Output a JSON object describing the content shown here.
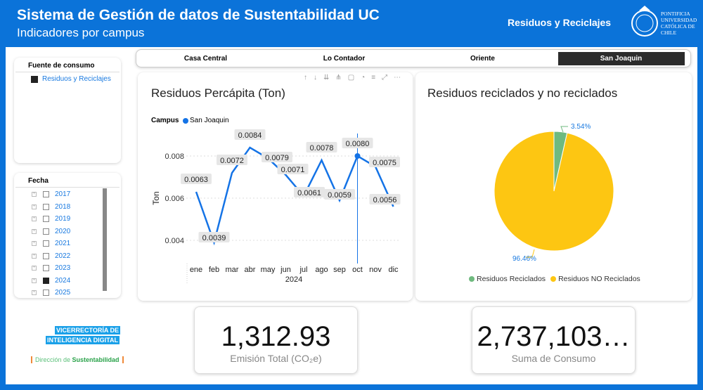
{
  "header": {
    "title": "Sistema de Gestión de datos de Sustentabilidad UC",
    "subtitle": "Indicadores por campus",
    "section": "Residuos y Reciclajes",
    "logo_text": "PONTIFICIA UNIVERSIDAD CATÓLICA DE CHILE"
  },
  "fuente": {
    "title": "Fuente de consumo",
    "item": "Residuos y Reciclajes"
  },
  "fecha": {
    "title": "Fecha",
    "years": [
      {
        "y": "2017",
        "c": false
      },
      {
        "y": "2018",
        "c": false
      },
      {
        "y": "2019",
        "c": false
      },
      {
        "y": "2020",
        "c": false
      },
      {
        "y": "2021",
        "c": false
      },
      {
        "y": "2022",
        "c": false
      },
      {
        "y": "2023",
        "c": false
      },
      {
        "y": "2024",
        "c": true
      },
      {
        "y": "2025",
        "c": false
      }
    ]
  },
  "tabs": [
    "Casa Central",
    "Lo Contador",
    "Oriente",
    "San Joaquin"
  ],
  "selected_tab": "San Joaquin",
  "footer": {
    "vice1": "VICERRECTORÍA DE",
    "vice2": "INTELIGENCIA DIGITAL",
    "dir1": "Dirección de ",
    "dir2": "Sustentabilidad"
  },
  "kpis": [
    {
      "value": "1,312.93",
      "label": "Emisión Total (CO₂e)"
    },
    {
      "value": "2,737,103…",
      "label": "Suma de Consumo"
    }
  ],
  "chart_data": [
    {
      "type": "line",
      "title": "Residuos Percápita (Ton)",
      "legend_title": "Campus",
      "series": [
        {
          "name": "San Joaquin",
          "color": "#1473e6",
          "values": [
            0.0063,
            0.0039,
            0.0072,
            0.0084,
            0.0079,
            0.0071,
            0.0061,
            0.0078,
            0.0059,
            0.008,
            0.0075,
            0.0056
          ]
        }
      ],
      "categories": [
        "ene",
        "feb",
        "mar",
        "abr",
        "may",
        "jun",
        "jul",
        "ago",
        "sep",
        "oct",
        "nov",
        "dic"
      ],
      "labels": [
        "0.0063",
        "0.0039",
        "0.0072",
        "0.0084",
        "0.0079",
        "0.0071",
        "0.0061",
        "0.0078",
        "0.0059",
        "0.0080",
        "0.0075",
        "0.0056"
      ],
      "xlabel": "2024",
      "ylabel": "Ton",
      "yticks": [
        "0.004",
        "0.006",
        "0.008"
      ],
      "ylim": [
        0.003,
        0.009
      ],
      "highlight": "oct"
    },
    {
      "type": "pie",
      "title": "Residuos reciclados y no reciclados",
      "slices": [
        {
          "name": "Residuos Reciclados",
          "value": 3.54,
          "label": "3.54%",
          "color": "#6fba7f"
        },
        {
          "name": "Residuos NO Reciclados",
          "value": 96.46,
          "label": "96.46%",
          "color": "#fdc612"
        }
      ]
    }
  ]
}
